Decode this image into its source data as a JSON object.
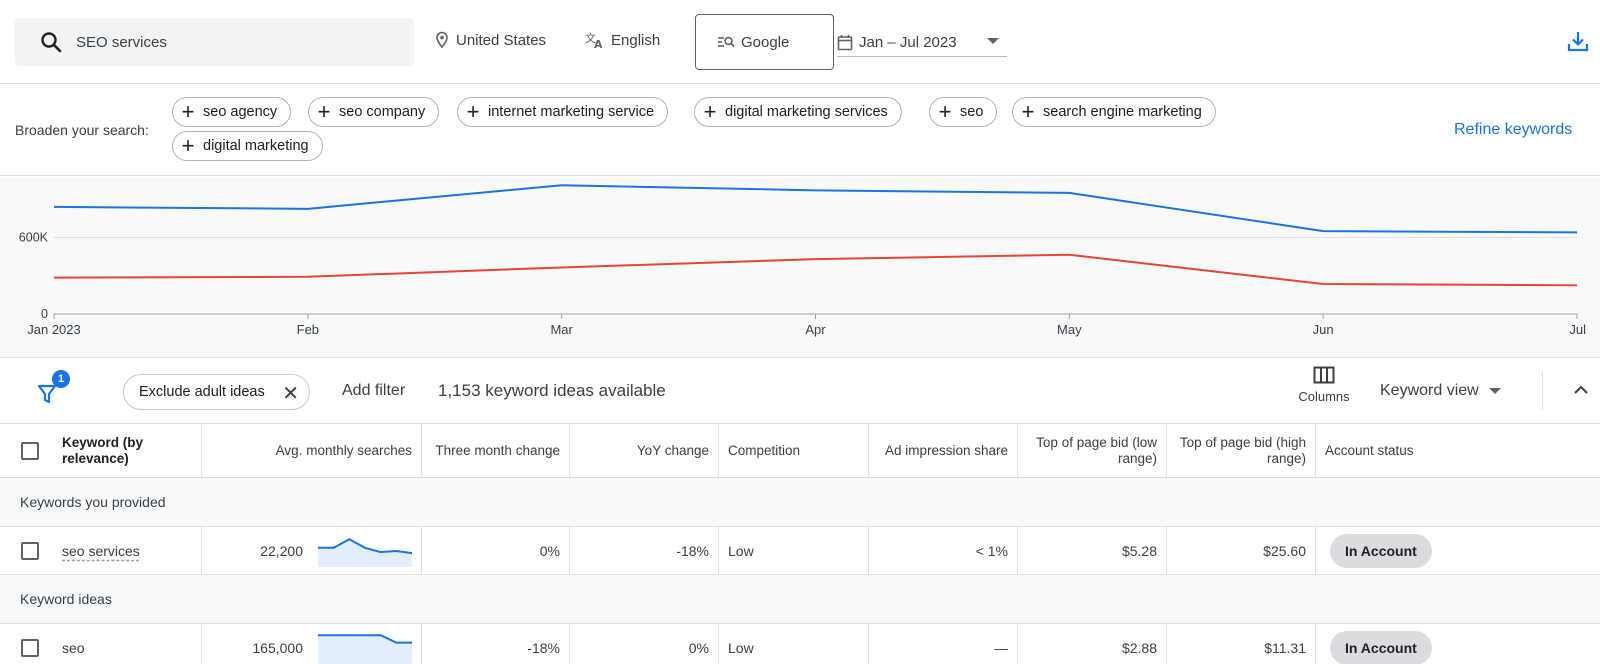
{
  "search": {
    "query": "SEO services"
  },
  "location": {
    "label": "United States",
    "icon": "location-pin-icon"
  },
  "language": {
    "label": "English",
    "icon": "translate-icon"
  },
  "engine": {
    "label": "Google",
    "icon": "search-network-icon"
  },
  "date_range": {
    "label": "Jan – Jul 2023",
    "icon": "calendar-icon"
  },
  "broaden": {
    "label": "Broaden your search:",
    "chips": [
      "seo agency",
      "seo company",
      "internet marketing service",
      "digital marketing services",
      "seo",
      "search engine marketing",
      "digital marketing"
    ],
    "refine_label": "Refine keywords"
  },
  "chart_data": {
    "type": "line",
    "categories": [
      "Jan 2023",
      "Feb",
      "Mar",
      "Apr",
      "May",
      "Jun",
      "Jul"
    ],
    "yticks": [
      "0",
      "600K"
    ],
    "ylim": [
      0,
      1200000
    ],
    "series": [
      {
        "values": [
          840000,
          825000,
          1010000,
          970000,
          950000,
          650000,
          640000
        ],
        "color": "#1a73e8"
      },
      {
        "values": [
          285000,
          292000,
          365000,
          430000,
          465000,
          235000,
          225000
        ],
        "color": "#ea4335"
      }
    ]
  },
  "filter": {
    "badge_count": "1",
    "chip_label": "Exclude adult ideas",
    "add_filter_label": "Add filter",
    "ideas_count": "1,153 keyword ideas available",
    "columns_label": "Columns",
    "view_label": "Keyword view"
  },
  "table": {
    "headers": {
      "keyword": "Keyword (by relevance)",
      "avg": "Avg. monthly searches",
      "three_month": "Three month change",
      "yoy": "YoY change",
      "competition": "Competition",
      "ad_share": "Ad impression share",
      "bid_low": "Top of page bid (low range)",
      "bid_high": "Top of page bid (high range)",
      "status": "Account status"
    },
    "section_provided": "Keywords you provided",
    "section_ideas": "Keyword ideas",
    "rows": [
      {
        "keyword": "seo services",
        "avg": "22,200",
        "three_month": "0%",
        "yoy": "-18%",
        "competition": "Low",
        "ad_share": "< 1%",
        "bid_low": "$5.28",
        "bid_high": "$25.60",
        "status": "In Account",
        "spark": [
          18,
          18,
          26,
          18,
          14,
          15,
          13
        ]
      },
      {
        "keyword": "seo",
        "avg": "165,000",
        "three_month": "-18%",
        "yoy": "0%",
        "competition": "Low",
        "ad_share": "—",
        "bid_low": "$2.88",
        "bid_high": "$11.31",
        "status": "In Account",
        "spark": [
          27,
          27,
          27,
          27,
          27,
          20,
          20
        ]
      }
    ]
  }
}
